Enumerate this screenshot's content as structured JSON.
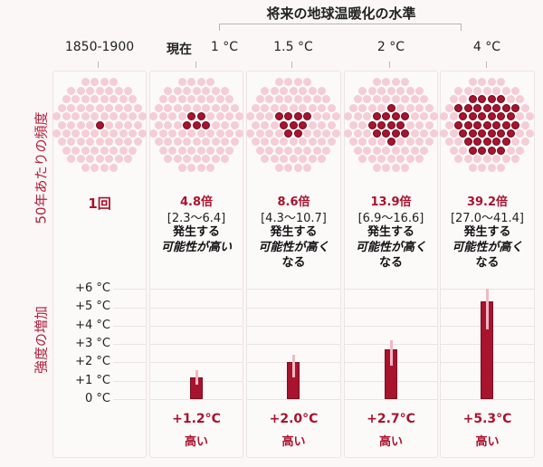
{
  "chart_data": {
    "type": "bar",
    "title": "将来の地球温暖化の水準",
    "categories": [
      "1850-1900",
      "現在 1 °C",
      "1.5 °C",
      "2 °C",
      "4 °C"
    ],
    "frequency": {
      "label": "50年あたりの頻度",
      "values": [
        "1回",
        "4.8倍",
        "8.6倍",
        "13.9倍",
        "39.2倍"
      ],
      "ranges": [
        "",
        "[2.3〜6.4]",
        "[4.3〜10.7]",
        "[6.9〜16.6]",
        "[27.0〜41.4]"
      ],
      "dots_highlighted": [
        1,
        5,
        9,
        14,
        39
      ],
      "descriptions": [
        "",
        "発生する 可能性が高い",
        "発生する 可能性が高くなる",
        "発生する 可能性が高くなる",
        "発生する 可能性が高くなる"
      ]
    },
    "intensity": {
      "label": "強度の増加",
      "ylabel": "強度の増加",
      "yticks": [
        "+6 °C",
        "+5 °C",
        "+4 °C",
        "+3 °C",
        "+2 °C",
        "+1 °C",
        "0 °C"
      ],
      "ylim": [
        0,
        6
      ],
      "categories": [
        "現在 1 °C",
        "1.5 °C",
        "2 °C",
        "4 °C"
      ],
      "values": [
        1.2,
        2.0,
        2.7,
        5.3
      ],
      "error_low": [
        0.8,
        1.2,
        1.8,
        3.8
      ],
      "error_high": [
        1.6,
        2.4,
        3.2,
        6.0
      ],
      "labels": [
        "+1.2°C",
        "+2.0°C",
        "+2.7°C",
        "+5.3°C"
      ],
      "confidence": [
        "高い",
        "高い",
        "高い",
        "高い"
      ]
    }
  },
  "header": {
    "future_title": "将来の地球温暖化の水準",
    "col1": "1850-1900",
    "col2_now": "現在",
    "col2_temp": "1 °C",
    "col3": "1.5 °C",
    "col4": "2 °C",
    "col5": "4 °C"
  },
  "side": {
    "frequency": "50年あたりの頻度",
    "intensity": "強度の増加"
  },
  "freq": {
    "c1": "1回",
    "c2": "4.8倍",
    "c2r": "[2.3〜6.4]",
    "c3": "8.6倍",
    "c3r": "[4.3〜10.7]",
    "c4": "13.9倍",
    "c4r": "[6.9〜16.6]",
    "c5": "39.2倍",
    "c5r": "[27.0〜41.4]",
    "occur": "発生する",
    "likely": "可能性が高い",
    "likelier": "可能性が高く",
    "naru": "なる"
  },
  "yaxis": {
    "t6": "+6 °C",
    "t5": "+5 °C",
    "t4": "+4 °C",
    "t3": "+3 °C",
    "t2": "+2 °C",
    "t1": "+1 °C",
    "t0": "0 °C"
  },
  "intens": {
    "v2": "+1.2°C",
    "v3": "+2.0°C",
    "v4": "+2.7°C",
    "v5": "+5.3°C",
    "conf": "高い"
  },
  "colors": {
    "accent": "#a8132d",
    "light_dot": "#f4cdd6",
    "error_bar": "#f1b8c4",
    "background": "#fbf7f7"
  }
}
